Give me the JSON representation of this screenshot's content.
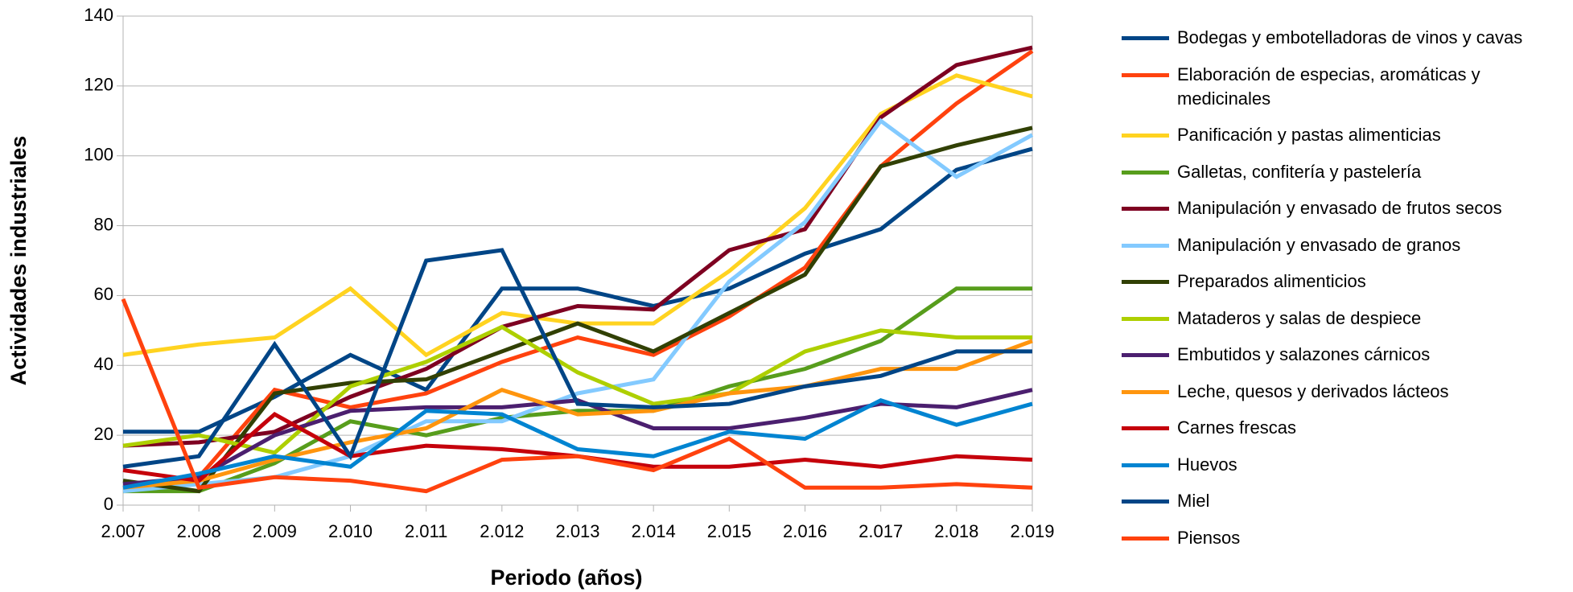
{
  "chart_data": {
    "type": "line",
    "categories": [
      "2.007",
      "2.008",
      "2.009",
      "2.010",
      "2.011",
      "2.012",
      "2.013",
      "2.014",
      "2.015",
      "2.016",
      "2.017",
      "2.018",
      "2.019"
    ],
    "x_label": "Periodo (años)",
    "y_label": "Actividades industriales",
    "ylim": [
      0,
      140
    ],
    "yticks": [
      0,
      20,
      40,
      60,
      80,
      100,
      120,
      140
    ],
    "grid": true,
    "legend": "right",
    "series": [
      {
        "name": " Bodegas y embotelladoras de vinos y cavas",
        "color": "#004586",
        "values": [
          21,
          21,
          31,
          43,
          33,
          62,
          62,
          57,
          62,
          72,
          79,
          96,
          102
        ]
      },
      {
        "name": " Elaboración de especias, aromáticas y medicinales",
        "color": "#ff420e",
        "values": [
          5,
          8,
          33,
          28,
          32,
          41,
          48,
          43,
          54,
          68,
          97,
          115,
          130
        ]
      },
      {
        "name": "Panificación y pastas alimenticias",
        "color": "#ffd320",
        "values": [
          43,
          46,
          48,
          62,
          43,
          55,
          52,
          52,
          67,
          85,
          112,
          123,
          117
        ]
      },
      {
        "name": " Galletas, confitería y pastelería",
        "color": "#579d1c",
        "values": [
          4,
          4,
          12,
          24,
          20,
          25,
          27,
          27,
          34,
          39,
          47,
          62,
          62
        ]
      },
      {
        "name": " Manipulación y envasado de frutos secos",
        "color": "#7e0021",
        "values": [
          17,
          18,
          21,
          31,
          39,
          51,
          57,
          56,
          73,
          79,
          111,
          126,
          131
        ]
      },
      {
        "name": " Manipulación y envasado de granos",
        "color": "#83caff",
        "values": [
          4,
          6,
          8,
          14,
          24,
          24,
          32,
          36,
          64,
          81,
          110,
          94,
          106
        ]
      },
      {
        "name": " Preparados alimenticios",
        "color": "#314004",
        "values": [
          7,
          4,
          32,
          35,
          36,
          44,
          52,
          44,
          55,
          66,
          97,
          103,
          108
        ]
      },
      {
        "name": " Mataderos y salas de despiece",
        "color": "#aecf00",
        "values": [
          17,
          20,
          15,
          34,
          41,
          51,
          38,
          29,
          32,
          44,
          50,
          48,
          48
        ]
      },
      {
        "name": " Embutidos y salazones cárnicos",
        "color": "#4b1f6f",
        "values": [
          6,
          8,
          20,
          27,
          28,
          28,
          30,
          22,
          22,
          25,
          29,
          28,
          33
        ]
      },
      {
        "name": " Leche, quesos y derivados lácteos",
        "color": "#ff950e",
        "values": [
          5,
          7,
          13,
          18,
          22,
          33,
          26,
          27,
          32,
          34,
          39,
          39,
          47
        ]
      },
      {
        "name": " Carnes frescas",
        "color": "#c5000b",
        "values": [
          10,
          7,
          26,
          14,
          17,
          16,
          14,
          11,
          11,
          13,
          11,
          14,
          13
        ]
      },
      {
        "name": " Huevos",
        "color": "#0084d1",
        "values": [
          5,
          9,
          14,
          11,
          27,
          26,
          16,
          14,
          21,
          19,
          30,
          23,
          29
        ]
      },
      {
        "name": " Miel",
        "color": "#004586",
        "values": [
          11,
          14,
          46,
          14,
          70,
          73,
          29,
          28,
          29,
          34,
          37,
          44,
          44
        ]
      },
      {
        "name": "Piensos",
        "color": "#ff420e",
        "values": [
          59,
          5,
          8,
          7,
          4,
          13,
          14,
          10,
          19,
          5,
          5,
          6,
          5
        ]
      }
    ]
  }
}
